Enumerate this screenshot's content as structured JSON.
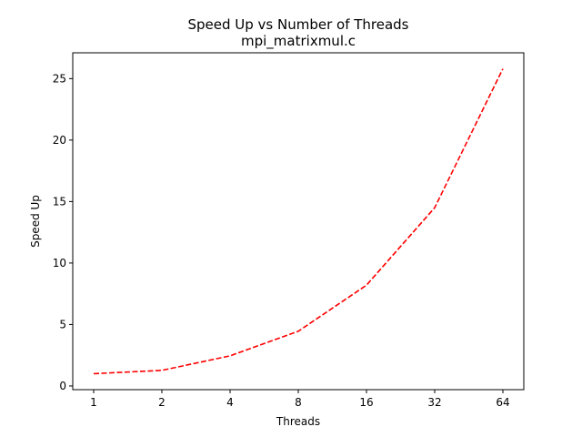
{
  "chart_data": {
    "type": "line",
    "title": "Speed Up vs Number of Threads",
    "subtitle": "mpi_matrixmul.c",
    "xlabel": "Threads",
    "ylabel": "Speed Up",
    "categories": [
      "1",
      "2",
      "4",
      "8",
      "16",
      "32",
      "64"
    ],
    "series": [
      {
        "values": [
          1.0,
          1.27,
          2.45,
          4.45,
          8.2,
          14.5,
          25.8
        ],
        "color": "#ff0000",
        "style": "dashed"
      }
    ],
    "ylim": [
      -0.3,
      27.1
    ],
    "yticks": [
      "0",
      "5",
      "10",
      "15",
      "20",
      "25"
    ],
    "grid": false,
    "legend": "none"
  }
}
